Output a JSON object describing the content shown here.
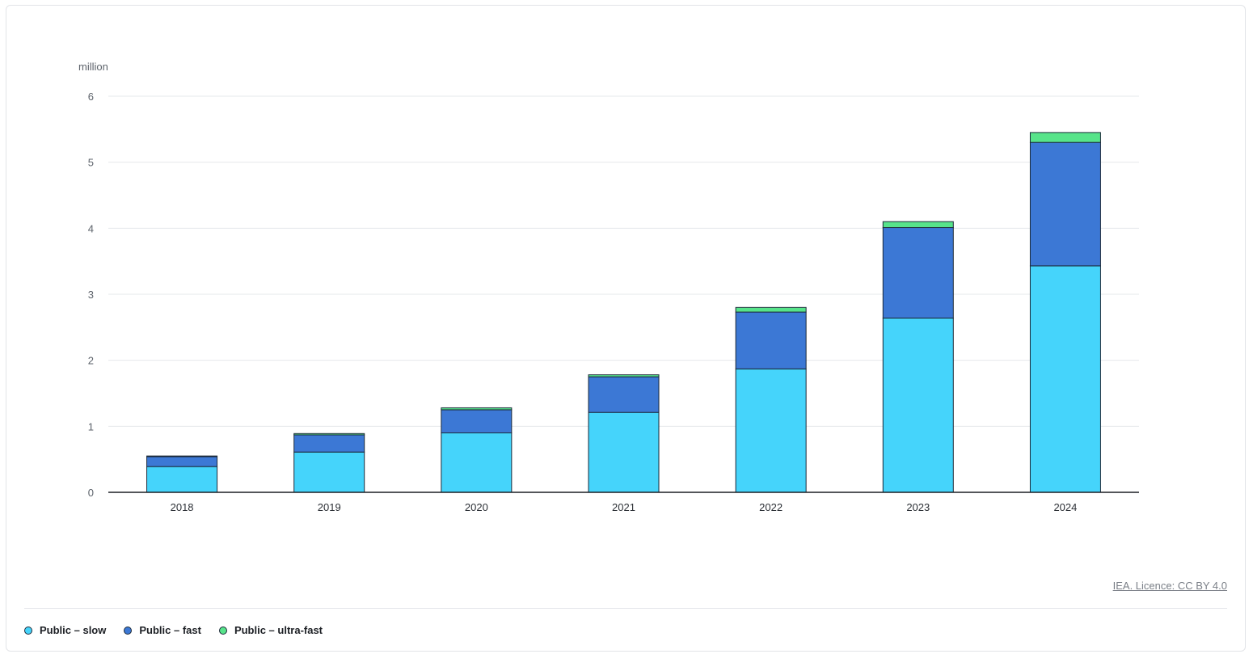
{
  "chart_data": {
    "type": "bar",
    "stacked": true,
    "ylabel": "million",
    "ylim": [
      0,
      6
    ],
    "yticks": [
      0,
      1,
      2,
      3,
      4,
      5,
      6
    ],
    "grid": true,
    "legend_position": "bottom-left",
    "categories": [
      "2018",
      "2019",
      "2020",
      "2021",
      "2022",
      "2023",
      "2024"
    ],
    "series": [
      {
        "name": "Public – slow",
        "color": "#45d4fb",
        "values": [
          0.39,
          0.61,
          0.9,
          1.21,
          1.87,
          2.64,
          3.43
        ]
      },
      {
        "name": "Public – fast",
        "color": "#3c78d5",
        "values": [
          0.15,
          0.26,
          0.35,
          0.54,
          0.86,
          1.37,
          1.87
        ]
      },
      {
        "name": "Public – ultra-fast",
        "color": "#57e48a",
        "values": [
          0.01,
          0.02,
          0.03,
          0.03,
          0.07,
          0.09,
          0.15
        ]
      }
    ]
  },
  "footer": {
    "credit": "IEA. Licence: CC BY 4.0"
  }
}
